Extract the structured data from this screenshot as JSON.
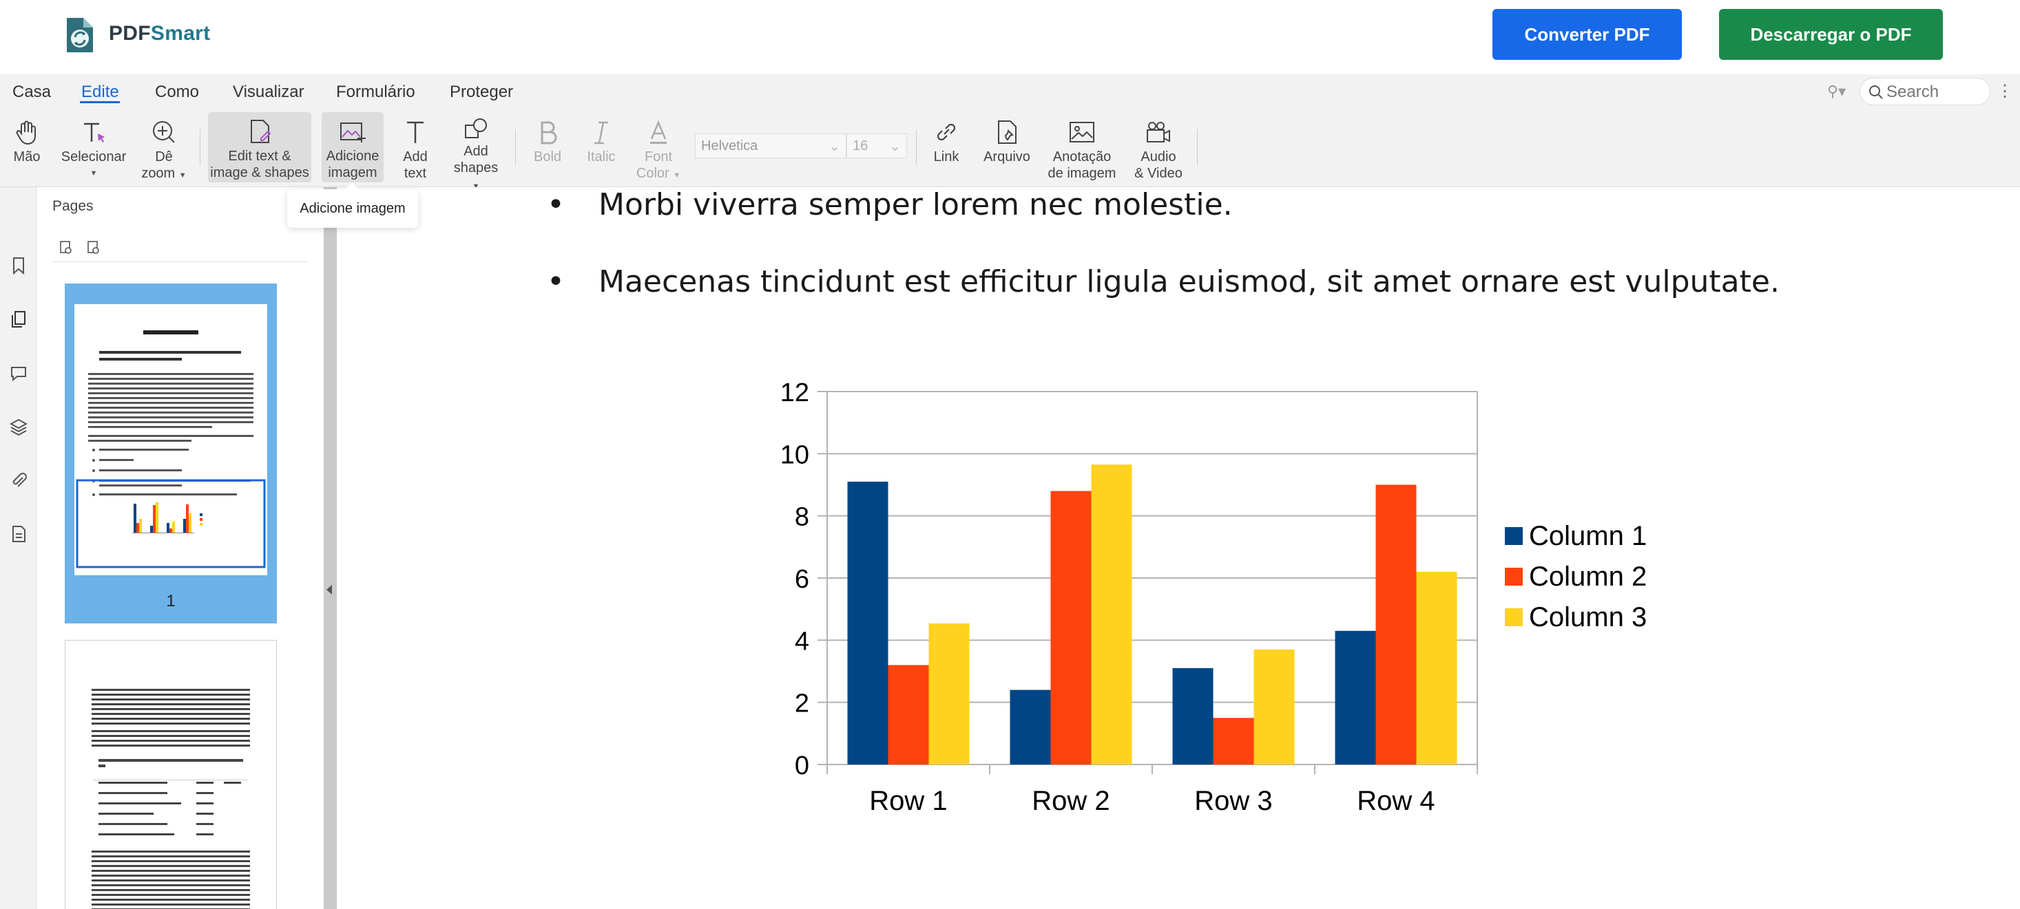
{
  "header": {
    "brand_pdf": "PDF",
    "brand_smart": "Smart",
    "convert_label": "Converter PDF",
    "download_label": "Descarregar o PDF"
  },
  "menu": {
    "items": [
      "Casa",
      "Edite",
      "Como",
      "Visualizar",
      "Formulário",
      "Proteger"
    ],
    "active": "Edite"
  },
  "search": {
    "placeholder": "Search"
  },
  "toolbar": {
    "hand": "Mão",
    "select": "Selecionar",
    "zoom1": "Dê",
    "zoom2": "zoom",
    "edit1": "Edit text &",
    "edit2": "image & shapes",
    "addimg1": "Adicione",
    "addimg2": "imagem",
    "addtext1": "Add",
    "addtext2": "text",
    "shapes1": "Add",
    "shapes2": "shapes",
    "bold": "Bold",
    "italic": "Italic",
    "fontcolor1": "Font",
    "fontcolor2": "Color",
    "font": "Helvetica",
    "size": "16",
    "link": "Link",
    "file": "Arquivo",
    "annot1": "Anotação",
    "annot2": "de imagem",
    "av1": "Audio",
    "av2": "& Video"
  },
  "tooltip": "Adicione imagem",
  "pages": {
    "title": "Pages",
    "thumb1_number": "1"
  },
  "document": {
    "bullets": [
      "Morbi viverra semper lorem nec molestie.",
      "Maecenas tincidunt est efficitur ligula euismod, sit amet ornare est vulputate."
    ]
  },
  "colors": {
    "accent": "#1a66d2",
    "convert": "#1769e8",
    "download": "#1a8a4a",
    "series": [
      "#004586",
      "#ff420e",
      "#ffd320"
    ]
  },
  "chart_data": {
    "type": "bar",
    "categories": [
      "Row 1",
      "Row 2",
      "Row 3",
      "Row 4"
    ],
    "series": [
      {
        "name": "Column 1",
        "values": [
          9.1,
          2.4,
          3.1,
          4.3
        ]
      },
      {
        "name": "Column 2",
        "values": [
          3.2,
          8.8,
          1.5,
          9.0
        ]
      },
      {
        "name": "Column 3",
        "values": [
          4.54,
          9.65,
          3.7,
          6.2
        ]
      }
    ],
    "ylim": [
      0,
      12
    ],
    "yticks": [
      0,
      2,
      4,
      6,
      8,
      10,
      12
    ],
    "grid": true,
    "legend": "right"
  }
}
